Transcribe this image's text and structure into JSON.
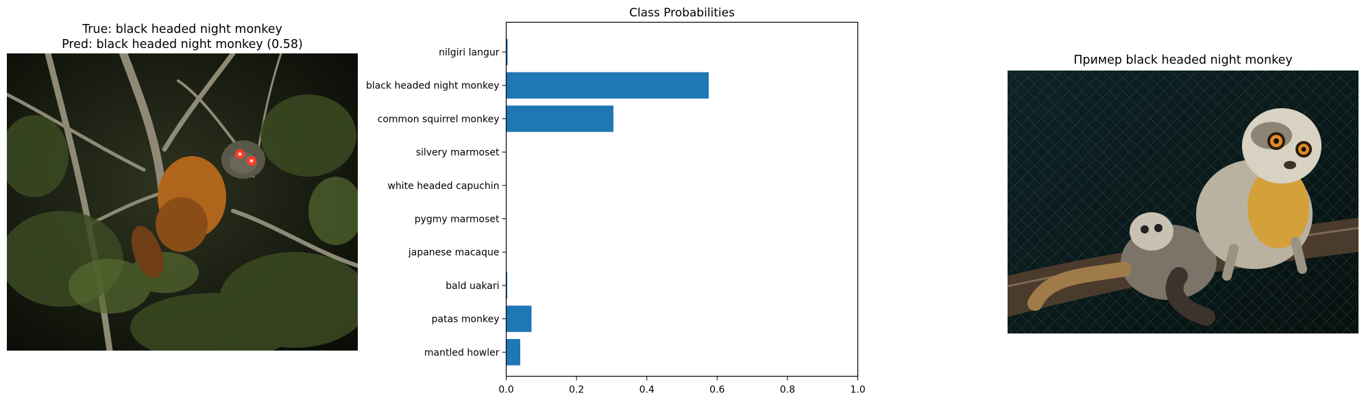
{
  "left_panel": {
    "title_line1": "True: black headed night monkey",
    "title_line2": "Pred: black headed night monkey (0.58)"
  },
  "right_panel": {
    "title": "Пример black headed night monkey"
  },
  "chart_data": {
    "type": "bar",
    "orientation": "horizontal",
    "title": "Class Probabilities",
    "xlabel": "",
    "ylabel": "",
    "categories": [
      "nilgiri langur",
      "black headed night monkey",
      "common squirrel monkey",
      "silvery marmoset",
      "white headed capuchin",
      "pygmy marmoset",
      "japanese macaque",
      "bald uakari",
      "patas monkey",
      "mantled howler"
    ],
    "values": [
      0.004,
      0.576,
      0.305,
      0.0,
      0.0,
      0.0,
      0.0,
      0.003,
      0.072,
      0.04
    ],
    "xlim": [
      0,
      1.0
    ],
    "xticks": [
      "0.0",
      "0.2",
      "0.4",
      "0.6",
      "0.8",
      "1.0"
    ],
    "bar_color": "#1f77b4",
    "grid": false,
    "legend": "none"
  }
}
